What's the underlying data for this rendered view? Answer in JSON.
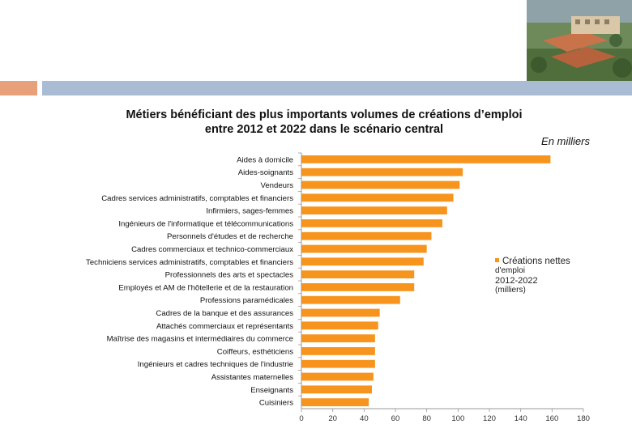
{
  "slide": {
    "colors": {
      "accent_left": "#e8a07a",
      "accent_right": "#a9bcd3"
    }
  },
  "photo": {
    "description_icon": "building-aerial-photo-icon"
  },
  "chart_data": {
    "type": "bar",
    "orientation": "horizontal",
    "title_line1": "Métiers bénéficiant des plus importants volumes de créations d’emploi",
    "title_line2": "entre 2012 et 2022 dans le scénario central",
    "units_note": "En milliers",
    "categories": [
      "Aides à domicile",
      "Aides-soignants",
      "Vendeurs",
      "Cadres services administratifs, comptables et financiers",
      "Infirmiers, sages-femmes",
      "Ingénieurs de l'informatique et télécommunications",
      "Personnels d'études et de recherche",
      "Cadres commerciaux et technico-commerciaux",
      "Techniciens services administratifs, comptables et financiers",
      "Professionnels des arts et spectacles",
      "Employés et AM de l'hôtellerie et de la restauration",
      "Professions paramédicales",
      "Cadres de la banque et des assurances",
      "Attachés commerciaux et représentants",
      "Maîtrise des magasins et intermédiaires du commerce",
      "Coiffeurs, esthéticiens",
      "Ingénieurs et cadres techniques de l'industrie",
      "Assistantes maternelles",
      "Enseignants",
      "Cuisiniers"
    ],
    "series": [
      {
        "legend_lines": [
          "Créations nettes",
          "d'emploi",
          "2012-2022",
          "(milliers)"
        ],
        "color": "#f7941d",
        "values": [
          159,
          103,
          101,
          97,
          93,
          90,
          83,
          80,
          78,
          72,
          72,
          63,
          50,
          49,
          47,
          47,
          47,
          46,
          45,
          43
        ]
      }
    ],
    "xlim": [
      0,
      180
    ],
    "x_ticks": [
      "0",
      "20",
      "40",
      "60",
      "80",
      "100",
      "120",
      "140",
      "160",
      "180"
    ],
    "grid": false,
    "legend_position": "right"
  }
}
